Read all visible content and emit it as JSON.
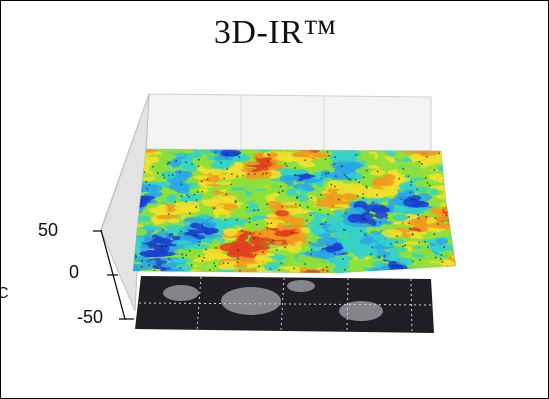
{
  "chart_data": {
    "type": "surface3d",
    "title": "3D-IR™",
    "zlabel": "C",
    "z_ticks": [
      "50",
      "0",
      "-50"
    ],
    "zlim": [
      -50,
      50
    ],
    "colormap": [
      "#1a3fd0",
      "#2aa7e8",
      "#35d2c8",
      "#8ee03a",
      "#f2e02c",
      "#f39a1e",
      "#e0401f"
    ],
    "grid": true,
    "base_image": "grayscale photographic plate"
  }
}
